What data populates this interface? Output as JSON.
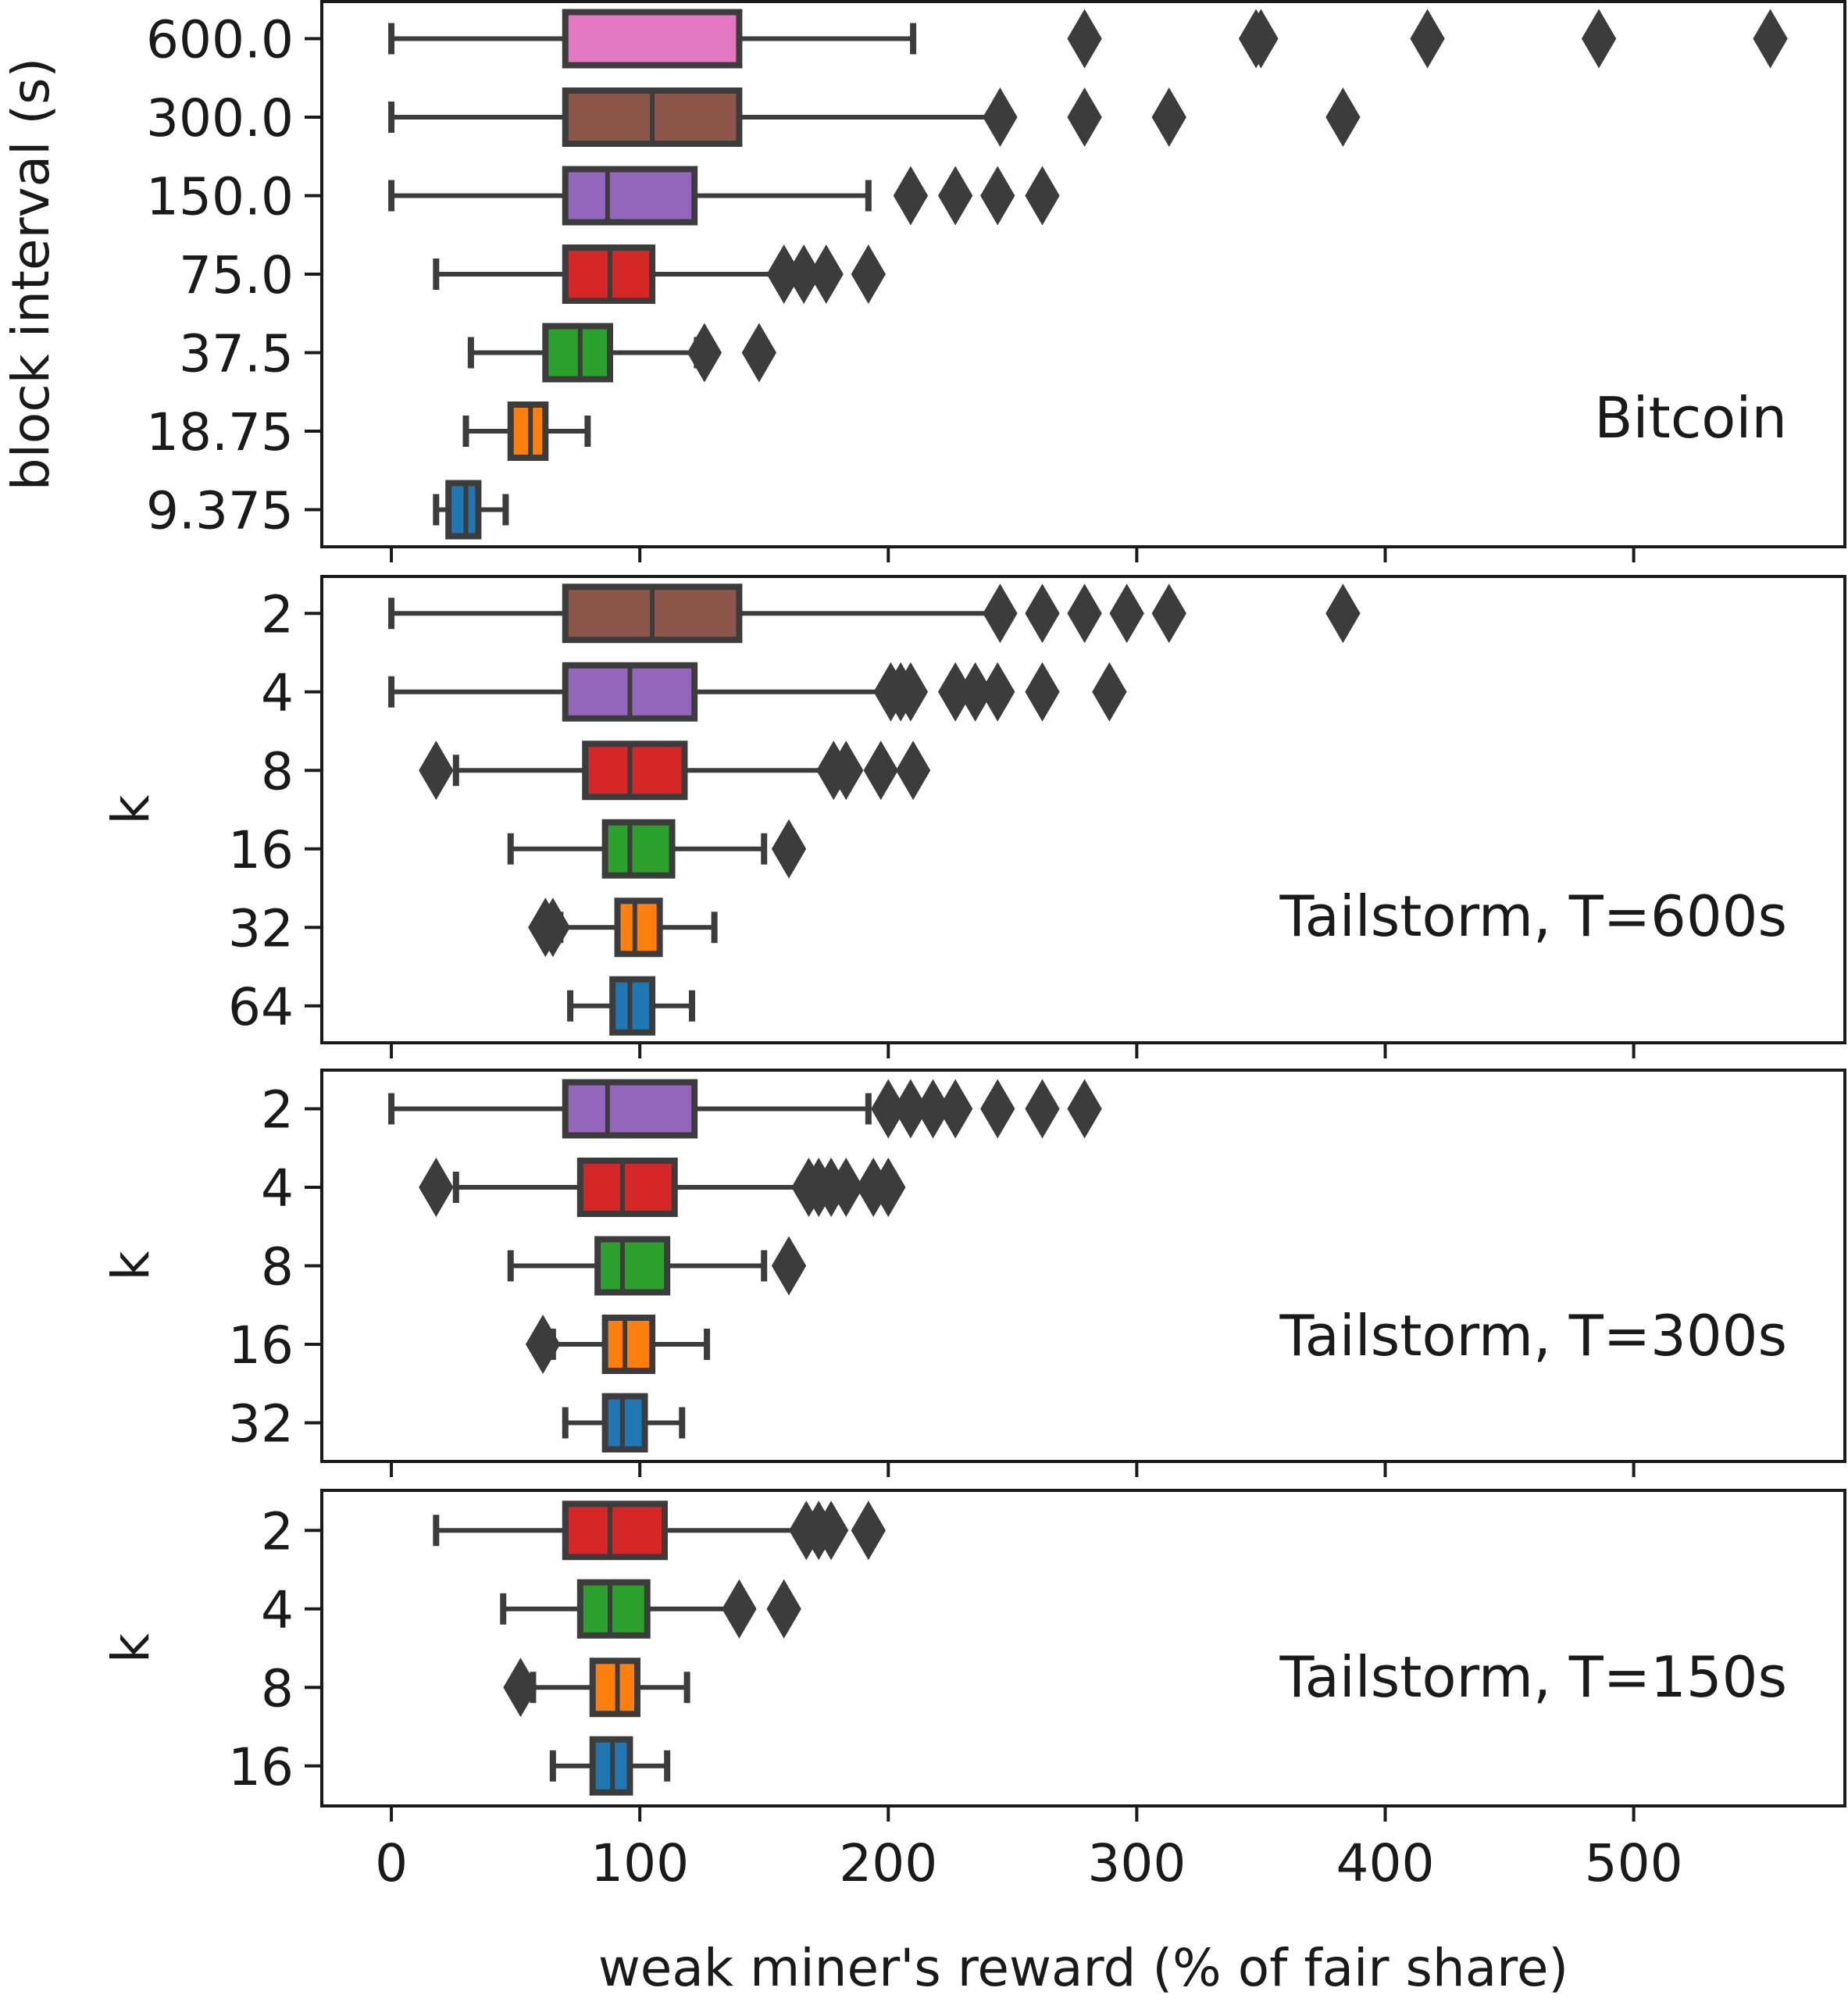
{
  "chart_data": {
    "type": "box",
    "xlabel": "weak miner's reward (% of fair share)",
    "xlim": [
      -28,
      585
    ],
    "xticks": [
      0,
      100,
      200,
      300,
      400,
      500
    ],
    "colors": {
      "blue": "#1f77b4",
      "orange": "#ff7f0e",
      "green": "#2ca02c",
      "red": "#d62728",
      "purple": "#9467bd",
      "brown": "#8c564b",
      "pink": "#e377c2",
      "edge": "#3c3c3c"
    },
    "panels": [
      {
        "ylabel": "block interval (s)",
        "annotation": "Bitcoin",
        "boxes": [
          {
            "label": "600.0",
            "color": "pink",
            "whisker_low": 0,
            "q1": 70,
            "median": 140,
            "q3": 140,
            "whisker_high": 210,
            "outliers": [
              279,
              348,
              350,
              417,
              486,
              555
            ]
          },
          {
            "label": "300.0",
            "color": "brown",
            "whisker_low": 0,
            "q1": 70,
            "median": 105,
            "q3": 140,
            "whisker_high": 244,
            "outliers": [
              245,
              279,
              313,
              383
            ]
          },
          {
            "label": "150.0",
            "color": "purple",
            "whisker_low": 0,
            "q1": 70,
            "median": 87,
            "q3": 122,
            "whisker_high": 192,
            "outliers": [
              209,
              227,
              244,
              262
            ]
          },
          {
            "label": "75.0",
            "color": "red",
            "whisker_low": 18,
            "q1": 70,
            "median": 88,
            "q3": 105,
            "whisker_high": 158,
            "outliers": [
              158,
              166,
              175,
              192
            ]
          },
          {
            "label": "37.5",
            "color": "green",
            "whisker_low": 32,
            "q1": 62,
            "median": 76,
            "q3": 88,
            "whisker_high": 123,
            "outliers": [
              126,
              148
            ]
          },
          {
            "label": "18.75",
            "color": "orange",
            "whisker_low": 30,
            "q1": 48,
            "median": 56,
            "q3": 62,
            "whisker_high": 79,
            "outliers": []
          },
          {
            "label": "9.375",
            "color": "blue",
            "whisker_low": 18,
            "q1": 23,
            "median": 30,
            "q3": 35,
            "whisker_high": 46,
            "outliers": []
          }
        ]
      },
      {
        "ylabel": "k",
        "annotation": "Tailstorm, T=600s",
        "boxes": [
          {
            "label": "2",
            "color": "brown",
            "whisker_low": 0,
            "q1": 70,
            "median": 105,
            "q3": 140,
            "whisker_high": 244,
            "outliers": [
              245,
              262,
              279,
              296,
              313,
              383
            ]
          },
          {
            "label": "4",
            "color": "purple",
            "whisker_low": 0,
            "q1": 70,
            "median": 96,
            "q3": 122,
            "whisker_high": 200,
            "outliers": [
              201,
              205,
              209,
              227,
              235,
              244,
              262,
              289
            ]
          },
          {
            "label": "8",
            "color": "red",
            "whisker_low": 26,
            "q1": 78,
            "median": 96,
            "q3": 118,
            "whisker_high": 177,
            "outliers": [
              18,
              178,
              183,
              197,
              210
            ]
          },
          {
            "label": "16",
            "color": "green",
            "whisker_low": 48,
            "q1": 86,
            "median": 96,
            "q3": 113,
            "whisker_high": 150,
            "outliers": [
              160
            ]
          },
          {
            "label": "32",
            "color": "orange",
            "whisker_low": 68,
            "q1": 91,
            "median": 98,
            "q3": 108,
            "whisker_high": 130,
            "outliers": [
              62,
              65
            ]
          },
          {
            "label": "64",
            "color": "blue",
            "whisker_low": 72,
            "q1": 89,
            "median": 96,
            "q3": 105,
            "whisker_high": 121,
            "outliers": []
          }
        ]
      },
      {
        "ylabel": "k",
        "annotation": "Tailstorm, T=300s",
        "boxes": [
          {
            "label": "2",
            "color": "purple",
            "whisker_low": 0,
            "q1": 70,
            "median": 87,
            "q3": 122,
            "whisker_high": 192,
            "outliers": [
              200,
              209,
              218,
              227,
              244,
              262,
              279
            ]
          },
          {
            "label": "4",
            "color": "red",
            "whisker_low": 26,
            "q1": 76,
            "median": 93,
            "q3": 114,
            "whisker_high": 167,
            "outliers": [
              18,
              168,
              172,
              177,
              183,
              194,
              200
            ]
          },
          {
            "label": "8",
            "color": "green",
            "whisker_low": 48,
            "q1": 83,
            "median": 93,
            "q3": 111,
            "whisker_high": 150,
            "outliers": [
              160
            ]
          },
          {
            "label": "16",
            "color": "orange",
            "whisker_low": 65,
            "q1": 86,
            "median": 94,
            "q3": 105,
            "whisker_high": 127,
            "outliers": [
              61
            ]
          },
          {
            "label": "32",
            "color": "blue",
            "whisker_low": 70,
            "q1": 86,
            "median": 93,
            "q3": 102,
            "whisker_high": 117,
            "outliers": []
          }
        ]
      },
      {
        "ylabel": "k",
        "annotation": "Tailstorm, T=150s",
        "boxes": [
          {
            "label": "2",
            "color": "red",
            "whisker_low": 18,
            "q1": 70,
            "median": 88,
            "q3": 110,
            "whisker_high": 166,
            "outliers": [
              167,
              172,
              177,
              192
            ]
          },
          {
            "label": "4",
            "color": "green",
            "whisker_low": 45,
            "q1": 76,
            "median": 88,
            "q3": 103,
            "whisker_high": 140,
            "outliers": [
              140,
              158
            ]
          },
          {
            "label": "8",
            "color": "orange",
            "whisker_low": 57,
            "q1": 81,
            "median": 91,
            "q3": 99,
            "whisker_high": 119,
            "outliers": [
              52
            ]
          },
          {
            "label": "16",
            "color": "blue",
            "whisker_low": 65,
            "q1": 81,
            "median": 89,
            "q3": 96,
            "whisker_high": 111,
            "outliers": []
          }
        ]
      }
    ]
  }
}
